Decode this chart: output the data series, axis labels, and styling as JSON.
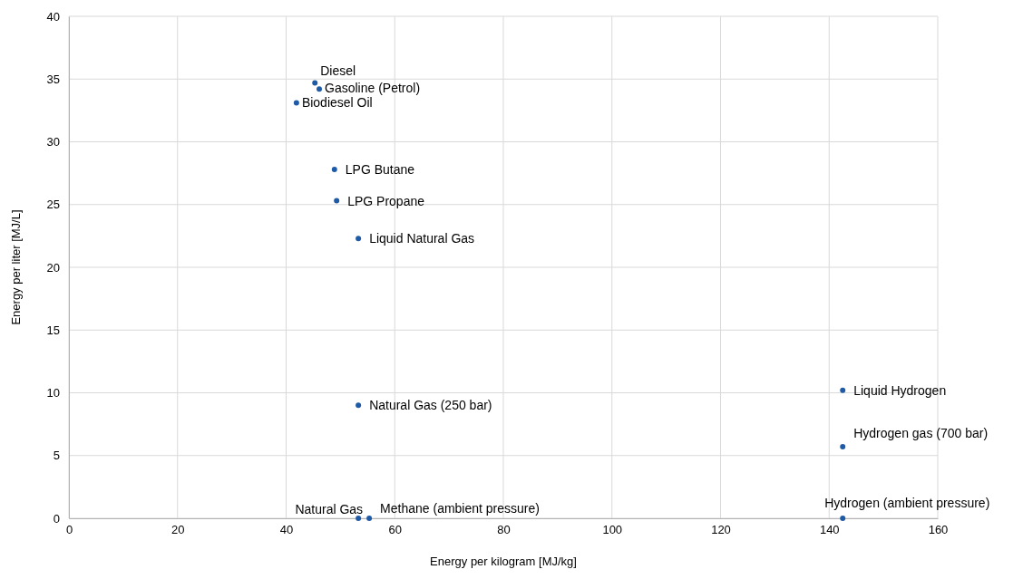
{
  "chart_data": {
    "type": "scatter",
    "xlabel": "Energy per kilogram [MJ/kg]",
    "ylabel": "Energy per liter [MJ/L]",
    "xlim": [
      0,
      160
    ],
    "xticks": [
      0,
      20,
      40,
      60,
      80,
      100,
      120,
      140,
      160
    ],
    "ylim": [
      0,
      40
    ],
    "yticks": [
      0,
      5,
      10,
      15,
      20,
      25,
      30,
      35,
      40
    ],
    "grid": true,
    "marker": "circle",
    "series": [
      {
        "color": "#1f5aa6",
        "x": [
          45.3,
          46.1,
          41.9,
          48.9,
          49.3,
          53.3,
          53.3,
          53.3,
          55.3,
          142.5,
          142.5,
          142.5
        ],
        "values": [
          34.7,
          34.2,
          33.1,
          27.8,
          25.3,
          22.3,
          9.0,
          0.0,
          0.0,
          10.2,
          5.7,
          0.0
        ]
      }
    ],
    "annotations": [
      {
        "text": "Diesel",
        "x": 45.3,
        "y": 34.7
      },
      {
        "text": "Gasoline (Petrol)",
        "x": 46.1,
        "y": 34.2
      },
      {
        "text": "Biodiesel Oil",
        "x": 41.9,
        "y": 33.1
      },
      {
        "text": "LPG Butane",
        "x": 48.9,
        "y": 27.8
      },
      {
        "text": "LPG Propane",
        "x": 49.3,
        "y": 25.3
      },
      {
        "text": "Liquid Natural Gas",
        "x": 53.3,
        "y": 22.3
      },
      {
        "text": "Natural Gas (250 bar)",
        "x": 53.3,
        "y": 9.0
      },
      {
        "text": "Natural Gas",
        "x": 53.3,
        "y": 0.0
      },
      {
        "text": "Methane (ambient pressure)",
        "x": 55.3,
        "y": 0.0
      },
      {
        "text": "Liquid Hydrogen",
        "x": 142.5,
        "y": 10.2
      },
      {
        "text": "Hydrogen gas (700 bar)",
        "x": 142.5,
        "y": 5.7
      },
      {
        "text": "Hydrogen (ambient pressure)",
        "x": 142.5,
        "y": 0.0
      }
    ]
  }
}
